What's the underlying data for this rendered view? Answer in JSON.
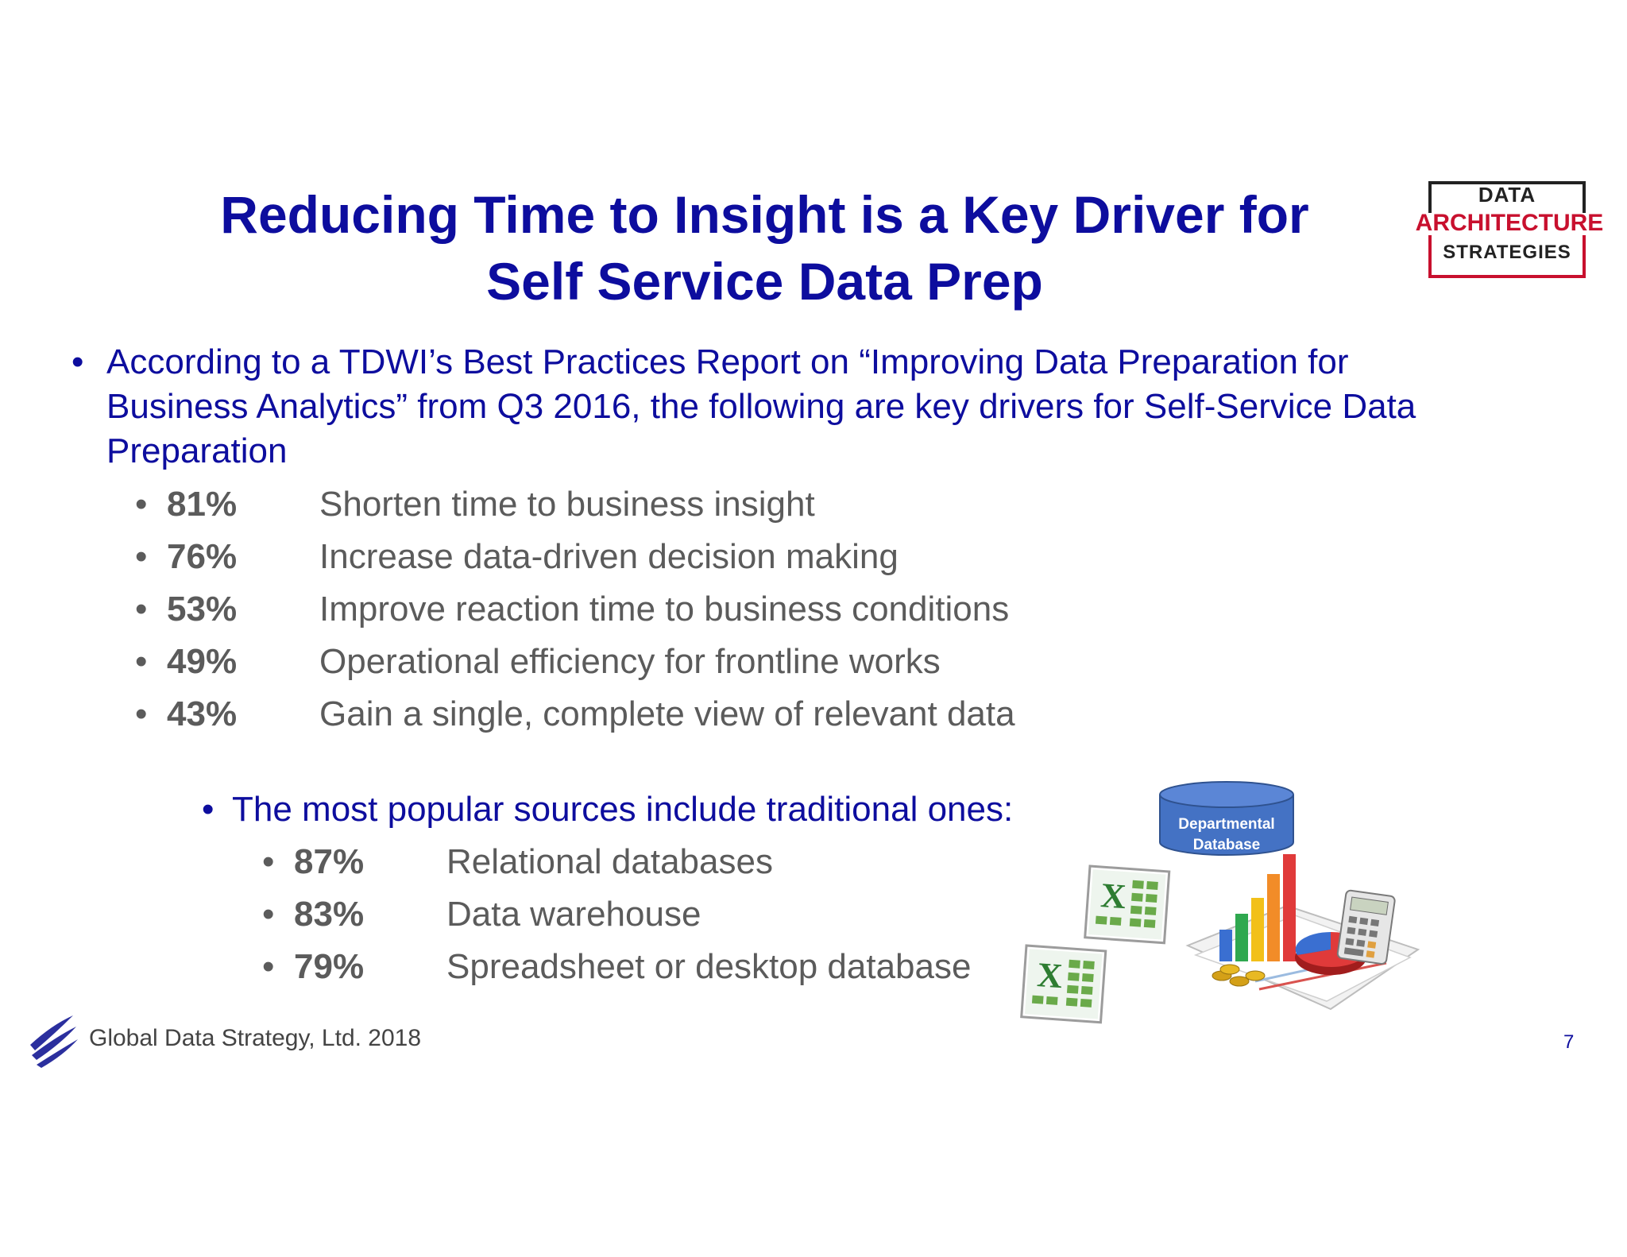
{
  "title": {
    "line1": "Reducing Time to Insight is a Key Driver for",
    "line2": "Self Service Data Prep"
  },
  "logo": {
    "line1": "DATA",
    "line2": "ARCHITECTURE",
    "line3": "STRATEGIES"
  },
  "intro": "According to a TDWI’s Best Practices Report on “Improving Data Preparation for Business Analytics” from Q3 2016, the following are key drivers for Self-Service Data Preparation",
  "bullet_char": "•",
  "drivers": [
    {
      "pct": "81%",
      "label": "Shorten time to business insight"
    },
    {
      "pct": "76%",
      "label": "Increase data-driven decision making"
    },
    {
      "pct": "53%",
      "label": "Improve reaction time to business conditions"
    },
    {
      "pct": "49%",
      "label": "Operational efficiency for frontline works"
    },
    {
      "pct": "43%",
      "label": "Gain a single, complete view of relevant data"
    }
  ],
  "sources_heading": "The most popular sources include traditional ones:",
  "sources": [
    {
      "pct": "87%",
      "label": "Relational databases"
    },
    {
      "pct": "83%",
      "label": "Data warehouse"
    },
    {
      "pct": "79%",
      "label": "Spreadsheet or desktop database"
    }
  ],
  "illustration": {
    "db_line1": "Departmental",
    "db_line2": "Database",
    "excel_letter": "X"
  },
  "footer": "Global Data Strategy, Ltd. 2018",
  "page_number": "7",
  "colors": {
    "title": "#0d0d9e",
    "body": "#5b5b5b",
    "logo_red": "#c8102e",
    "db_blue": "#4472c4"
  }
}
